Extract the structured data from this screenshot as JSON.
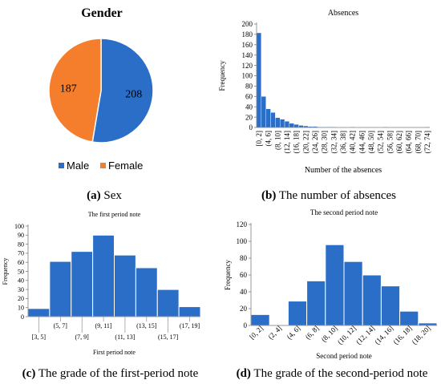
{
  "colors": {
    "blue": "#2a6ec8",
    "orange": "#f57e2c",
    "axis": "#7f7f7f",
    "grid": "#d9d9d9"
  },
  "captions": {
    "a": {
      "letter": "(a)",
      "text": "Sex"
    },
    "b": {
      "letter": "(b)",
      "text": "The number of absences"
    },
    "c": {
      "letter": "(c)",
      "text": "The grade of the first-period note"
    },
    "d": {
      "letter": "(d)",
      "text": "The grade of the second-period note"
    }
  },
  "chart_data": [
    {
      "type": "pie",
      "title": "Gender",
      "categories": [
        "Male",
        "Female"
      ],
      "values": [
        208,
        187
      ],
      "colors": [
        "#2a6ec8",
        "#f57e2c"
      ],
      "legend": "bottom"
    },
    {
      "type": "bar",
      "title": "Absences",
      "xlabel": "Number of the absences",
      "ylabel": "Frequency",
      "ylim": [
        0,
        200
      ],
      "yticks": [
        0,
        20,
        40,
        60,
        80,
        100,
        120,
        140,
        160,
        180,
        200
      ],
      "categories": [
        "[0, 2]",
        "(2, 4]",
        "(4, 6]",
        "(6, 8]",
        "(8, 10]",
        "(10, 12]",
        "(12, 14]",
        "(14, 16]",
        "(16, 18]",
        "(18, 20]",
        "(20, 22]",
        "(22, 24]",
        "(24, 26]",
        "(26, 28]",
        "(28, 30]",
        "(30, 32]",
        "(32, 34]",
        "(34, 36]",
        "(36, 38]",
        "(38, 40]",
        "(40, 42]",
        "(42, 44]",
        "(44, 46]",
        "(46, 48]",
        "(48, 50]",
        "(50, 52]",
        "(52, 54]",
        "(54, 56]",
        "(56, 58]",
        "(58, 60]",
        "(60, 62]",
        "(62, 64]",
        "(64, 66]",
        "(66, 68]",
        "(68, 70]",
        "(70, 72]",
        "(72, 74]"
      ],
      "tick_labels": [
        "[0, 2]",
        "(4, 6]",
        "(8, 10]",
        "(12, 14]",
        "(16, 18]",
        "(20, 22]",
        "(24, 26]",
        "(28, 30]",
        "(32, 34]",
        "(36, 38]",
        "(40, 42]",
        "(44, 46]",
        "(48, 50]",
        "(52, 54]",
        "(56, 58]",
        "(60, 62]",
        "(64, 66]",
        "(68, 70]",
        "(72, 74]"
      ],
      "values": [
        183,
        60,
        36,
        29,
        19,
        16,
        12,
        8,
        6,
        4,
        3,
        2,
        2,
        1,
        1,
        1,
        1,
        0,
        0,
        0,
        1,
        0,
        0,
        0,
        0,
        0,
        0,
        1,
        0,
        0,
        0,
        0,
        0,
        0,
        0,
        0,
        1
      ],
      "grid": false
    },
    {
      "type": "bar",
      "title": "The first period note",
      "xlabel": "First period note",
      "ylabel": "Frequency",
      "ylim": [
        0,
        100
      ],
      "yticks": [
        0,
        10,
        20,
        30,
        40,
        50,
        60,
        70,
        80,
        90,
        100
      ],
      "categories": [
        "[3, 5]",
        "(5, 7]",
        "(7, 9]",
        "(9, 11]",
        "(11, 13]",
        "(13, 15]",
        "(15, 17]",
        "(17, 19]"
      ],
      "values": [
        9,
        61,
        72,
        90,
        68,
        54,
        30,
        11
      ],
      "grid": false
    },
    {
      "type": "bar",
      "title": "The second period note",
      "xlabel": "Second period note",
      "ylabel": "Frequency",
      "ylim": [
        0,
        120
      ],
      "yticks": [
        0,
        20,
        40,
        60,
        80,
        100,
        120
      ],
      "categories": [
        "[0, 2]",
        "(2, 4]",
        "(4, 6]",
        "(6, 8]",
        "(8, 10]",
        "(10, 12]",
        "(12, 14]",
        "(14, 16]",
        "(16, 18]",
        "(18, 20]"
      ],
      "values": [
        13,
        1,
        29,
        53,
        96,
        76,
        60,
        47,
        17,
        3
      ],
      "grid": false
    }
  ]
}
